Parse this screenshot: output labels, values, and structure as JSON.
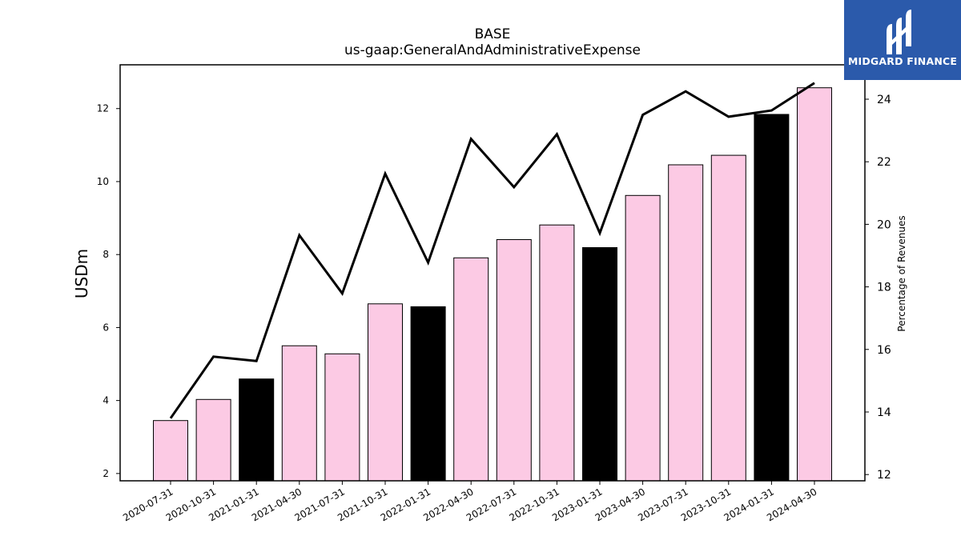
{
  "chart_data": {
    "type": "bar",
    "title": "BASE",
    "subtitle": "us-gaap:GeneralAndAdministrativeExpense",
    "ylabel": "USDm",
    "ylabel_right": "Percentage of Revenues",
    "categories": [
      "2020-07-31",
      "2020-10-31",
      "2021-01-31",
      "2021-04-30",
      "2021-07-31",
      "2021-10-31",
      "2022-01-31",
      "2022-04-30",
      "2022-07-31",
      "2022-10-31",
      "2023-01-31",
      "2023-04-30",
      "2023-07-31",
      "2023-10-31",
      "2024-01-31",
      "2024-04-30"
    ],
    "series": [
      {
        "type": "bar",
        "axis": "left",
        "values": [
          3.45,
          4.03,
          4.59,
          5.5,
          5.28,
          6.65,
          6.57,
          7.91,
          8.41,
          8.81,
          8.19,
          9.62,
          10.46,
          10.72,
          11.84,
          12.57
        ]
      },
      {
        "type": "line",
        "axis": "right",
        "values": [
          13.8,
          15.77,
          15.63,
          19.65,
          17.79,
          21.62,
          18.78,
          22.73,
          21.19,
          22.88,
          19.72,
          23.5,
          24.25,
          23.44,
          23.64,
          24.52
        ]
      }
    ],
    "bar_highlight": [
      false,
      false,
      true,
      false,
      false,
      false,
      true,
      false,
      false,
      false,
      true,
      false,
      false,
      false,
      true,
      false
    ],
    "colors": {
      "bar": "#fccae4",
      "bar_highlight": "#000000",
      "line": "#000000",
      "bar_edge": "#000000"
    },
    "ylim": [
      1.8,
      13.2
    ],
    "ylim_right": [
      11.8,
      25.1
    ],
    "yticks": [
      2,
      4,
      6,
      8,
      10,
      12
    ],
    "yticks_right": [
      12,
      14,
      16,
      18,
      20,
      22,
      24
    ],
    "grid": false
  },
  "logo": {
    "text": "MIDGARD FINANCE",
    "background": "#2b5aab"
  }
}
